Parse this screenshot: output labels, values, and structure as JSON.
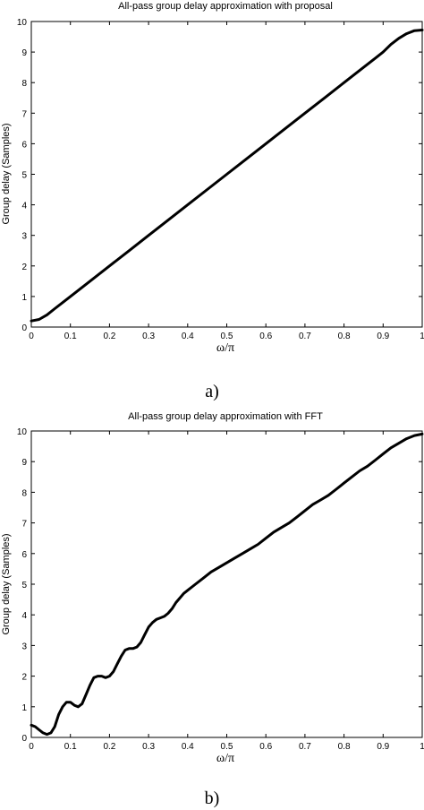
{
  "chart_data": [
    {
      "type": "line",
      "title": "All-pass group delay approximation with proposal",
      "xlabel": "ω/π",
      "ylabel": "Group delay (Samples)",
      "xlim": [
        0,
        1
      ],
      "ylim": [
        0,
        10
      ],
      "x_ticks": [
        "0",
        "0.1",
        "0.2",
        "0.3",
        "0.4",
        "0.5",
        "0.6",
        "0.7",
        "0.8",
        "0.9",
        "1"
      ],
      "y_ticks": [
        "0",
        "1",
        "2",
        "3",
        "4",
        "5",
        "6",
        "7",
        "8",
        "9",
        "10"
      ],
      "grid": false,
      "caption": "a)",
      "series": [
        {
          "x": [
            0,
            0.02,
            0.04,
            0.06,
            0.08,
            0.1,
            0.15,
            0.2,
            0.25,
            0.3,
            0.35,
            0.4,
            0.45,
            0.5,
            0.55,
            0.6,
            0.65,
            0.7,
            0.75,
            0.8,
            0.85,
            0.88,
            0.9,
            0.92,
            0.94,
            0.96,
            0.98,
            1.0
          ],
          "values": [
            0.2,
            0.25,
            0.4,
            0.6,
            0.8,
            1.0,
            1.5,
            2.0,
            2.5,
            3.0,
            3.5,
            4.0,
            4.5,
            5.0,
            5.5,
            6.0,
            6.5,
            7.0,
            7.5,
            8.0,
            8.5,
            8.8,
            9.0,
            9.25,
            9.45,
            9.6,
            9.7,
            9.72
          ]
        }
      ]
    },
    {
      "type": "line",
      "title": "All-pass group delay approximation with FFT",
      "xlabel": "ω/π",
      "ylabel": "Group delay (Samples)",
      "xlim": [
        0,
        1
      ],
      "ylim": [
        0,
        10
      ],
      "x_ticks": [
        "0",
        "0.1",
        "0.2",
        "0.3",
        "0.4",
        "0.5",
        "0.6",
        "0.7",
        "0.8",
        "0.9",
        "1"
      ],
      "y_ticks": [
        "0",
        "1",
        "2",
        "3",
        "4",
        "5",
        "6",
        "7",
        "8",
        "9",
        "10"
      ],
      "grid": false,
      "caption": "b)",
      "series": [
        {
          "x": [
            0,
            0.01,
            0.02,
            0.03,
            0.04,
            0.05,
            0.06,
            0.07,
            0.08,
            0.09,
            0.1,
            0.11,
            0.12,
            0.13,
            0.14,
            0.15,
            0.16,
            0.17,
            0.18,
            0.19,
            0.2,
            0.21,
            0.22,
            0.23,
            0.24,
            0.25,
            0.26,
            0.27,
            0.28,
            0.29,
            0.3,
            0.31,
            0.32,
            0.33,
            0.34,
            0.35,
            0.36,
            0.37,
            0.38,
            0.39,
            0.4,
            0.42,
            0.44,
            0.46,
            0.48,
            0.5,
            0.52,
            0.54,
            0.56,
            0.58,
            0.6,
            0.62,
            0.64,
            0.66,
            0.68,
            0.7,
            0.72,
            0.74,
            0.76,
            0.78,
            0.8,
            0.82,
            0.84,
            0.86,
            0.88,
            0.9,
            0.92,
            0.94,
            0.96,
            0.98,
            1.0
          ],
          "values": [
            0.4,
            0.35,
            0.25,
            0.15,
            0.1,
            0.15,
            0.35,
            0.75,
            1.0,
            1.15,
            1.15,
            1.05,
            1.0,
            1.1,
            1.4,
            1.7,
            1.95,
            2.0,
            2.0,
            1.95,
            2.0,
            2.15,
            2.4,
            2.65,
            2.85,
            2.9,
            2.9,
            2.95,
            3.1,
            3.35,
            3.6,
            3.75,
            3.85,
            3.9,
            3.95,
            4.05,
            4.2,
            4.4,
            4.55,
            4.7,
            4.8,
            5.0,
            5.2,
            5.4,
            5.55,
            5.7,
            5.85,
            6.0,
            6.15,
            6.3,
            6.5,
            6.7,
            6.85,
            7.0,
            7.2,
            7.4,
            7.6,
            7.75,
            7.9,
            8.1,
            8.3,
            8.5,
            8.7,
            8.85,
            9.05,
            9.25,
            9.45,
            9.6,
            9.75,
            9.85,
            9.9
          ]
        }
      ]
    }
  ]
}
